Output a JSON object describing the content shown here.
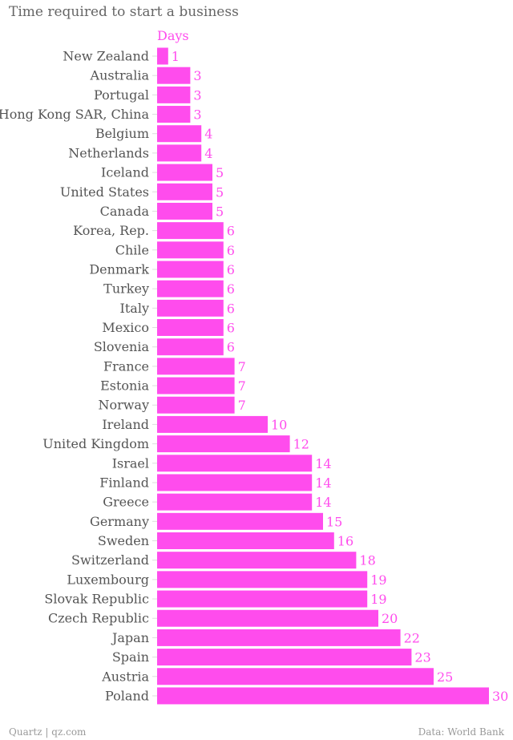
{
  "chart_data": {
    "type": "bar",
    "orientation": "horizontal",
    "title": "Time required to start a business",
    "unit_label": "Days",
    "bar_color": "#ff4ced",
    "xlim": [
      0,
      30
    ],
    "categories": [
      "New Zealand",
      "Australia",
      "Portugal",
      "Hong Kong SAR, China",
      "Belgium",
      "Netherlands",
      "Iceland",
      "United States",
      "Canada",
      "Korea, Rep.",
      "Chile",
      "Denmark",
      "Turkey",
      "Italy",
      "Mexico",
      "Slovenia",
      "France",
      "Estonia",
      "Norway",
      "Ireland",
      "United Kingdom",
      "Israel",
      "Finland",
      "Greece",
      "Germany",
      "Sweden",
      "Switzerland",
      "Luxembourg",
      "Slovak Republic",
      "Czech Republic",
      "Japan",
      "Spain",
      "Austria",
      "Poland"
    ],
    "values": [
      1,
      3,
      3,
      3,
      4,
      4,
      5,
      5,
      5,
      6,
      6,
      6,
      6,
      6,
      6,
      6,
      7,
      7,
      7,
      10,
      12,
      14,
      14,
      14,
      15,
      16,
      18,
      19,
      19,
      20,
      22,
      23,
      25,
      30
    ]
  },
  "footer": {
    "left": "Quartz | qz.com",
    "right": "Data: World Bank"
  }
}
